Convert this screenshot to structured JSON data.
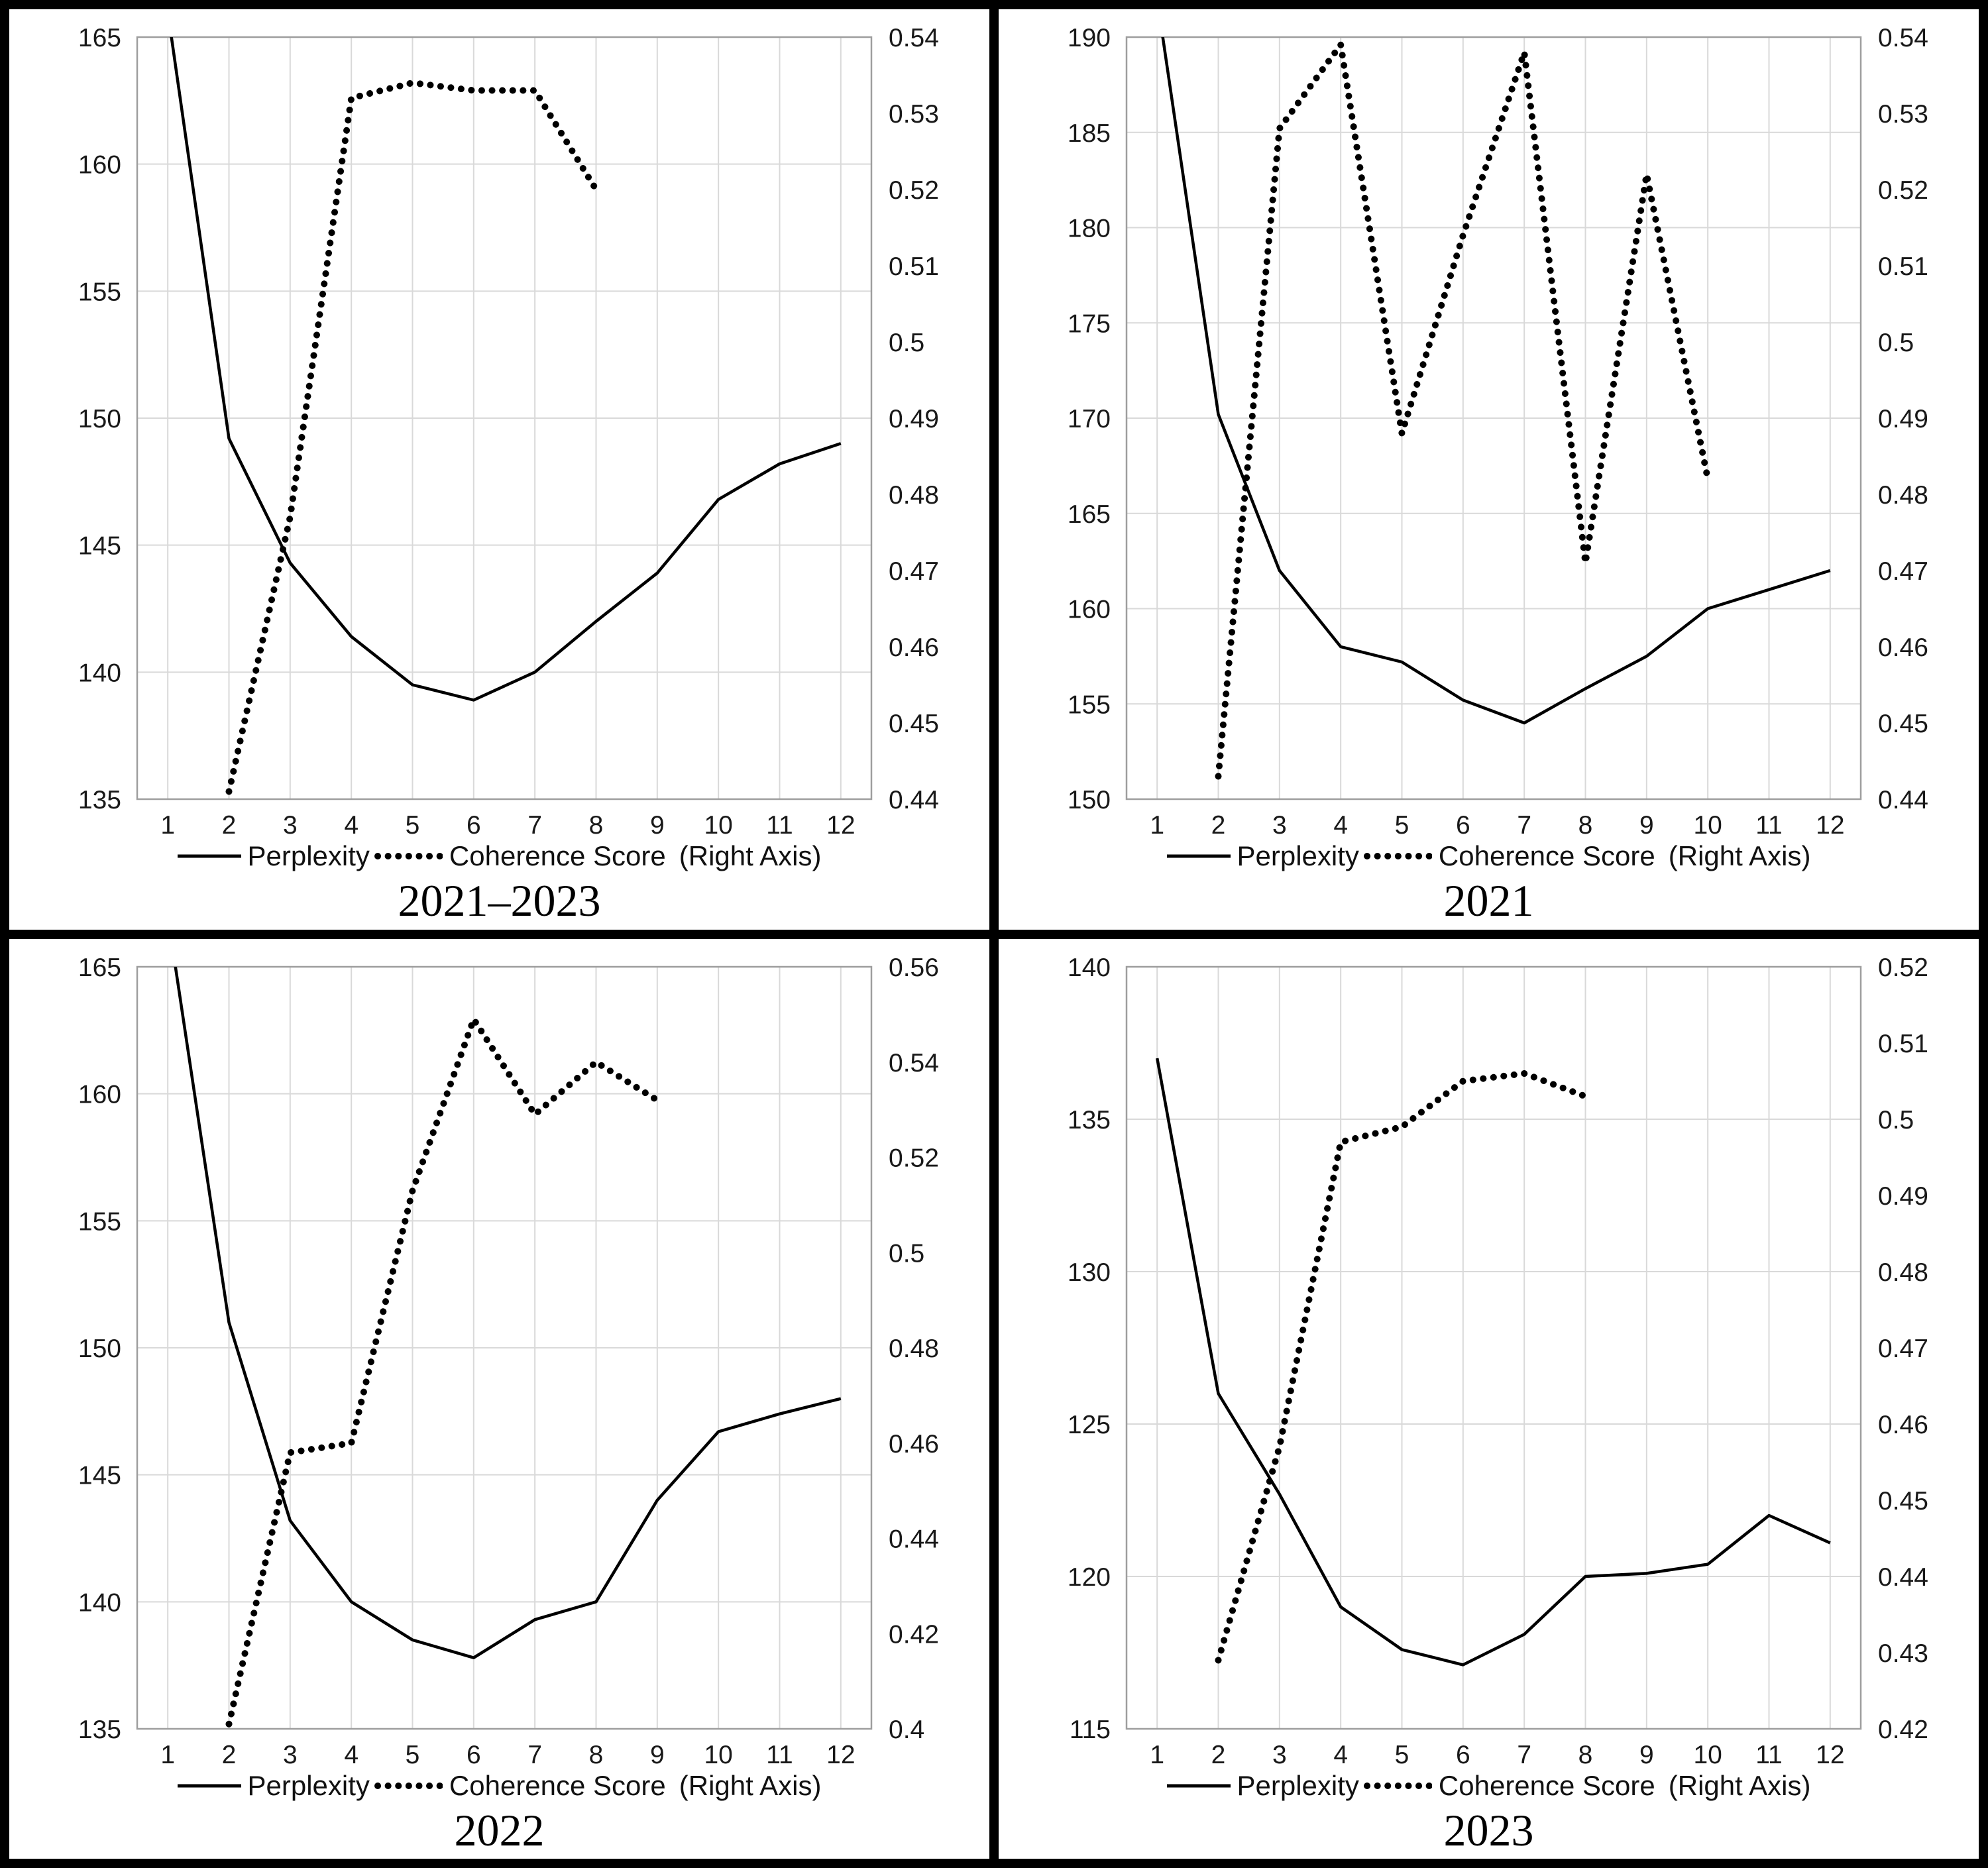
{
  "page": {
    "background": "#ffffff",
    "frame_border_color": "#000000",
    "gridline_color": "#d9d9d9",
    "plot_border_color": "#9e9e9e",
    "series_color": "#000000"
  },
  "legend": {
    "perplexity": "Perplexity",
    "coherence": "Coherence Score",
    "right_axis_note": "(Right Axis)"
  },
  "chart_data": [
    {
      "type": "line",
      "title": "2021–2023",
      "x_ticks": [
        1,
        2,
        3,
        4,
        5,
        6,
        7,
        8,
        9,
        10,
        11,
        12
      ],
      "left_axis": {
        "min": 135,
        "max": 165,
        "tick_labels": [
          "165",
          "160",
          "155",
          "150",
          "145",
          "140",
          "135"
        ]
      },
      "right_axis": {
        "min": 0.44,
        "max": 0.54,
        "tick_labels": [
          "0.54",
          "0.53",
          "0.52",
          "0.51",
          "0.5",
          "0.49",
          "0.48",
          "0.47",
          "0.46",
          "0.45",
          "0.44"
        ]
      },
      "grid": true,
      "legend_position": "bottom",
      "series": [
        {
          "name": "Perplexity",
          "axis": "left",
          "style": "solid",
          "x": [
            1,
            2,
            3,
            4,
            5,
            6,
            7,
            8,
            9,
            10,
            11,
            12
          ],
          "values": [
            166,
            149.2,
            144.3,
            141.4,
            139.5,
            138.9,
            140,
            142,
            143.9,
            146.8,
            148.2,
            149
          ]
        },
        {
          "name": "Coherence Score",
          "axis": "right",
          "style": "dotted",
          "x": [
            2,
            3,
            4,
            5,
            6,
            7,
            8
          ],
          "values": [
            0.441,
            0.477,
            0.532,
            0.534,
            0.533,
            0.533,
            0.52
          ]
        }
      ]
    },
    {
      "type": "line",
      "title": "2021",
      "x_ticks": [
        1,
        2,
        3,
        4,
        5,
        6,
        7,
        8,
        9,
        10,
        11,
        12
      ],
      "left_axis": {
        "min": 150,
        "max": 190,
        "tick_labels": [
          "190",
          "185",
          "180",
          "175",
          "170",
          "165",
          "160",
          "155",
          "150"
        ]
      },
      "right_axis": {
        "min": 0.44,
        "max": 0.54,
        "tick_labels": [
          "0.54",
          "0.53",
          "0.52",
          "0.51",
          "0.5",
          "0.49",
          "0.48",
          "0.47",
          "0.46",
          "0.45",
          "0.44"
        ]
      },
      "grid": true,
      "legend_position": "bottom",
      "series": [
        {
          "name": "Perplexity",
          "axis": "left",
          "style": "solid",
          "x": [
            1,
            2,
            3,
            4,
            5,
            6,
            7,
            8,
            9,
            10,
            11,
            12
          ],
          "values": [
            192,
            170.2,
            162,
            158,
            157.2,
            155.2,
            154,
            155.8,
            157.5,
            160,
            161,
            162
          ]
        },
        {
          "name": "Coherence Score",
          "axis": "right",
          "style": "dotted",
          "x": [
            2,
            3,
            4,
            5,
            6,
            7,
            8,
            9,
            10
          ],
          "values": [
            0.443,
            0.528,
            0.539,
            0.488,
            0.514,
            0.538,
            0.471,
            0.522,
            0.482
          ]
        }
      ]
    },
    {
      "type": "line",
      "title": "2022",
      "x_ticks": [
        1,
        2,
        3,
        4,
        5,
        6,
        7,
        8,
        9,
        10,
        11,
        12
      ],
      "left_axis": {
        "min": 135,
        "max": 165,
        "tick_labels": [
          "165",
          "160",
          "155",
          "150",
          "145",
          "140",
          "135"
        ]
      },
      "right_axis": {
        "min": 0.4,
        "max": 0.56,
        "tick_labels": [
          "0.56",
          "0.54",
          "0.52",
          "0.5",
          "0.48",
          "0.46",
          "0.44",
          "0.42",
          "0.4"
        ]
      },
      "grid": true,
      "legend_position": "bottom",
      "series": [
        {
          "name": "Perplexity",
          "axis": "left",
          "style": "solid",
          "x": [
            1,
            2,
            3,
            4,
            5,
            6,
            7,
            8,
            9,
            10,
            11,
            12
          ],
          "values": [
            167,
            151,
            143.2,
            140,
            138.5,
            137.8,
            139.3,
            140,
            144,
            146.7,
            147.4,
            148
          ]
        },
        {
          "name": "Coherence Score",
          "axis": "right",
          "style": "dotted",
          "x": [
            2,
            3,
            4,
            5,
            6,
            7,
            8,
            9
          ],
          "values": [
            0.401,
            0.458,
            0.46,
            0.513,
            0.549,
            0.529,
            0.54,
            0.532
          ]
        }
      ]
    },
    {
      "type": "line",
      "title": "2023",
      "x_ticks": [
        1,
        2,
        3,
        4,
        5,
        6,
        7,
        8,
        9,
        10,
        11,
        12
      ],
      "left_axis": {
        "min": 115,
        "max": 140,
        "tick_labels": [
          "140",
          "135",
          "130",
          "125",
          "120",
          "115"
        ]
      },
      "right_axis": {
        "min": 0.42,
        "max": 0.52,
        "tick_labels": [
          "0.52",
          "0.51",
          "0.5",
          "0.49",
          "0.48",
          "0.47",
          "0.46",
          "0.45",
          "0.44",
          "0.43",
          "0.42"
        ]
      },
      "grid": true,
      "legend_position": "bottom",
      "series": [
        {
          "name": "Perplexity",
          "axis": "left",
          "style": "solid",
          "x": [
            1,
            2,
            3,
            4,
            5,
            6,
            7,
            8,
            9,
            10,
            11,
            12
          ],
          "values": [
            137,
            126,
            122.7,
            119,
            117.6,
            117.1,
            118.1,
            120,
            120.1,
            120.4,
            122,
            121.1
          ]
        },
        {
          "name": "Coherence Score",
          "axis": "right",
          "style": "dotted",
          "x": [
            2,
            3,
            4,
            5,
            6,
            7,
            8
          ],
          "values": [
            0.429,
            0.457,
            0.497,
            0.499,
            0.505,
            0.506,
            0.503
          ]
        }
      ]
    }
  ]
}
